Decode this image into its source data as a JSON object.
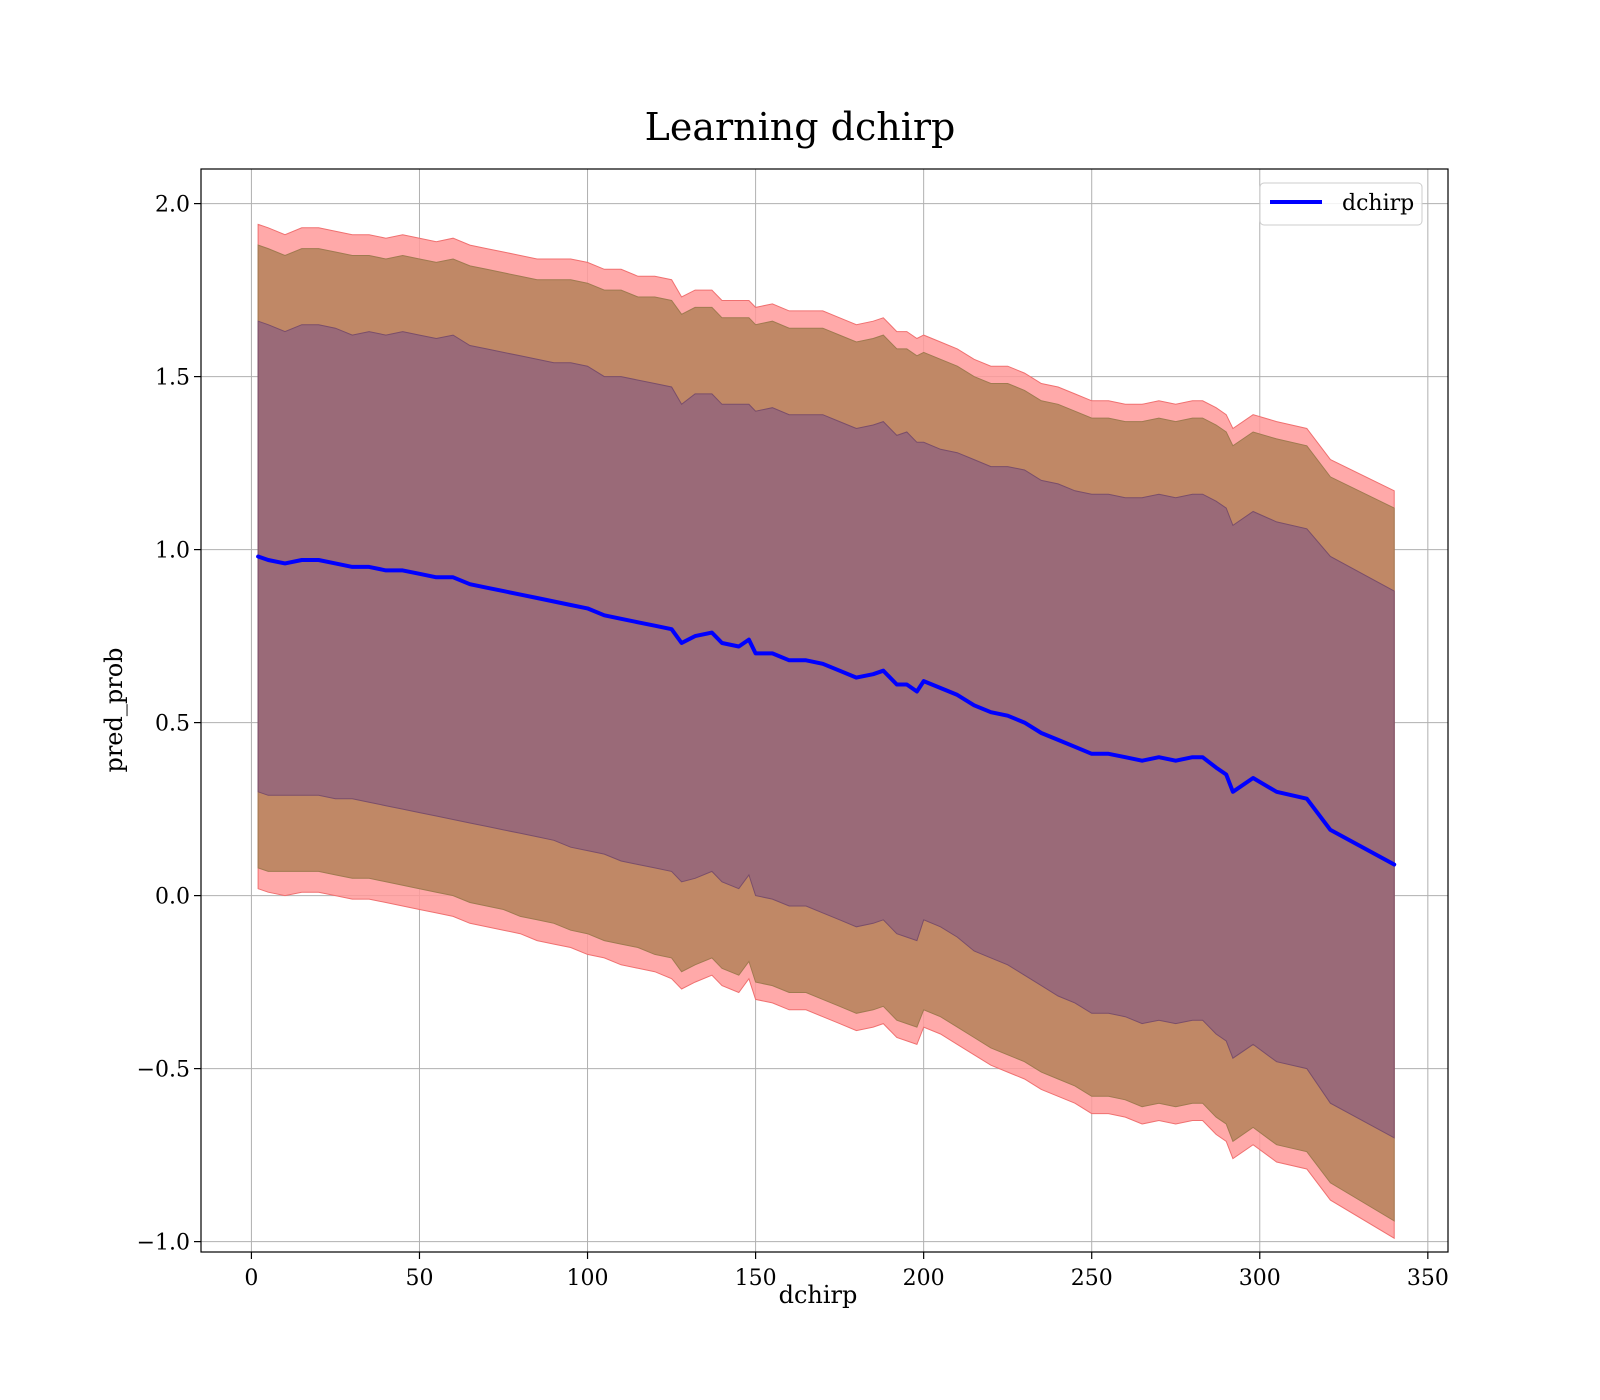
{
  "chart_data": {
    "type": "line",
    "title": "Learning dchirp",
    "xlabel": "dchirp",
    "ylabel": "pred_prob",
    "xlim": [
      -15,
      356
    ],
    "ylim": [
      -1.03,
      2.1
    ],
    "xticks": [
      0,
      50,
      100,
      150,
      200,
      250,
      300,
      350
    ],
    "yticks": [
      -1.0,
      -0.5,
      0.0,
      0.5,
      1.0,
      1.5,
      2.0
    ],
    "grid": true,
    "legend_position": "top-right",
    "colors": {
      "line": "#0000ff",
      "band_outer": "#ff9a9a",
      "band_middle": "#c08866",
      "band_inner": "#9a6a78",
      "grid": "#b0b0b0"
    },
    "series": [
      {
        "name": "dchirp",
        "x": [
          2,
          5,
          10,
          15,
          20,
          25,
          30,
          35,
          40,
          45,
          50,
          55,
          60,
          65,
          70,
          75,
          80,
          85,
          90,
          95,
          100,
          105,
          110,
          115,
          120,
          125,
          128,
          132,
          137,
          140,
          145,
          148,
          150,
          155,
          160,
          165,
          170,
          175,
          180,
          185,
          188,
          192,
          195,
          198,
          200,
          205,
          210,
          215,
          220,
          225,
          230,
          235,
          240,
          245,
          250,
          255,
          260,
          265,
          270,
          275,
          280,
          283,
          287,
          290,
          292,
          298,
          305,
          314,
          321,
          340
        ],
        "values": [
          0.98,
          0.97,
          0.96,
          0.97,
          0.97,
          0.96,
          0.95,
          0.95,
          0.94,
          0.94,
          0.93,
          0.92,
          0.92,
          0.9,
          0.89,
          0.88,
          0.87,
          0.86,
          0.85,
          0.84,
          0.83,
          0.81,
          0.8,
          0.79,
          0.78,
          0.77,
          0.73,
          0.75,
          0.76,
          0.73,
          0.72,
          0.74,
          0.7,
          0.7,
          0.68,
          0.68,
          0.67,
          0.65,
          0.63,
          0.64,
          0.65,
          0.61,
          0.61,
          0.59,
          0.62,
          0.6,
          0.58,
          0.55,
          0.53,
          0.52,
          0.5,
          0.47,
          0.45,
          0.43,
          0.41,
          0.41,
          0.4,
          0.39,
          0.4,
          0.39,
          0.4,
          0.4,
          0.37,
          0.35,
          0.3,
          0.34,
          0.3,
          0.28,
          0.19,
          0.09
        ],
        "band_inner": {
          "lower": [
            0.3,
            0.29,
            0.29,
            0.29,
            0.29,
            0.28,
            0.28,
            0.27,
            0.26,
            0.25,
            0.24,
            0.23,
            0.22,
            0.21,
            0.2,
            0.19,
            0.18,
            0.17,
            0.16,
            0.14,
            0.13,
            0.12,
            0.1,
            0.09,
            0.08,
            0.07,
            0.04,
            0.05,
            0.07,
            0.04,
            0.02,
            0.06,
            0.0,
            -0.01,
            -0.03,
            -0.03,
            -0.05,
            -0.07,
            -0.09,
            -0.08,
            -0.07,
            -0.11,
            -0.12,
            -0.13,
            -0.07,
            -0.09,
            -0.12,
            -0.16,
            -0.18,
            -0.2,
            -0.23,
            -0.26,
            -0.29,
            -0.31,
            -0.34,
            -0.34,
            -0.35,
            -0.37,
            -0.36,
            -0.37,
            -0.36,
            -0.36,
            -0.4,
            -0.42,
            -0.47,
            -0.43,
            -0.48,
            -0.5,
            -0.6,
            -0.7
          ],
          "upper": [
            1.66,
            1.65,
            1.63,
            1.65,
            1.65,
            1.64,
            1.62,
            1.63,
            1.62,
            1.63,
            1.62,
            1.61,
            1.62,
            1.59,
            1.58,
            1.57,
            1.56,
            1.55,
            1.54,
            1.54,
            1.53,
            1.5,
            1.5,
            1.49,
            1.48,
            1.47,
            1.42,
            1.45,
            1.45,
            1.42,
            1.42,
            1.42,
            1.4,
            1.41,
            1.39,
            1.39,
            1.39,
            1.37,
            1.35,
            1.36,
            1.37,
            1.33,
            1.34,
            1.31,
            1.31,
            1.29,
            1.28,
            1.26,
            1.24,
            1.24,
            1.23,
            1.2,
            1.19,
            1.17,
            1.16,
            1.16,
            1.15,
            1.15,
            1.16,
            1.15,
            1.16,
            1.16,
            1.14,
            1.12,
            1.07,
            1.11,
            1.08,
            1.06,
            0.98,
            0.88
          ]
        },
        "band_middle": {
          "lower": [
            0.08,
            0.07,
            0.07,
            0.07,
            0.07,
            0.06,
            0.05,
            0.05,
            0.04,
            0.03,
            0.02,
            0.01,
            0.0,
            -0.02,
            -0.03,
            -0.04,
            -0.06,
            -0.07,
            -0.08,
            -0.1,
            -0.11,
            -0.13,
            -0.14,
            -0.15,
            -0.17,
            -0.18,
            -0.22,
            -0.2,
            -0.18,
            -0.21,
            -0.23,
            -0.19,
            -0.25,
            -0.26,
            -0.28,
            -0.28,
            -0.3,
            -0.32,
            -0.34,
            -0.33,
            -0.32,
            -0.36,
            -0.37,
            -0.38,
            -0.33,
            -0.35,
            -0.38,
            -0.41,
            -0.44,
            -0.46,
            -0.48,
            -0.51,
            -0.53,
            -0.55,
            -0.58,
            -0.58,
            -0.59,
            -0.61,
            -0.6,
            -0.61,
            -0.6,
            -0.6,
            -0.64,
            -0.66,
            -0.71,
            -0.67,
            -0.72,
            -0.74,
            -0.83,
            -0.94
          ],
          "upper": [
            1.88,
            1.87,
            1.85,
            1.87,
            1.87,
            1.86,
            1.85,
            1.85,
            1.84,
            1.85,
            1.84,
            1.83,
            1.84,
            1.82,
            1.81,
            1.8,
            1.79,
            1.78,
            1.78,
            1.78,
            1.77,
            1.75,
            1.75,
            1.73,
            1.73,
            1.72,
            1.68,
            1.7,
            1.7,
            1.67,
            1.67,
            1.67,
            1.65,
            1.66,
            1.64,
            1.64,
            1.64,
            1.62,
            1.6,
            1.61,
            1.62,
            1.58,
            1.58,
            1.56,
            1.57,
            1.55,
            1.53,
            1.5,
            1.48,
            1.48,
            1.46,
            1.43,
            1.42,
            1.4,
            1.38,
            1.38,
            1.37,
            1.37,
            1.38,
            1.37,
            1.38,
            1.38,
            1.36,
            1.34,
            1.3,
            1.34,
            1.32,
            1.3,
            1.21,
            1.12
          ]
        },
        "band_outer": {
          "lower": [
            0.02,
            0.01,
            0.0,
            0.01,
            0.01,
            0.0,
            -0.01,
            -0.01,
            -0.02,
            -0.03,
            -0.04,
            -0.05,
            -0.06,
            -0.08,
            -0.09,
            -0.1,
            -0.11,
            -0.13,
            -0.14,
            -0.15,
            -0.17,
            -0.18,
            -0.2,
            -0.21,
            -0.22,
            -0.24,
            -0.27,
            -0.25,
            -0.23,
            -0.26,
            -0.28,
            -0.24,
            -0.3,
            -0.31,
            -0.33,
            -0.33,
            -0.35,
            -0.37,
            -0.39,
            -0.38,
            -0.37,
            -0.41,
            -0.42,
            -0.43,
            -0.38,
            -0.4,
            -0.43,
            -0.46,
            -0.49,
            -0.51,
            -0.53,
            -0.56,
            -0.58,
            -0.6,
            -0.63,
            -0.63,
            -0.64,
            -0.66,
            -0.65,
            -0.66,
            -0.65,
            -0.65,
            -0.69,
            -0.71,
            -0.76,
            -0.72,
            -0.77,
            -0.79,
            -0.88,
            -0.99
          ],
          "upper": [
            1.94,
            1.93,
            1.91,
            1.93,
            1.93,
            1.92,
            1.91,
            1.91,
            1.9,
            1.91,
            1.9,
            1.89,
            1.9,
            1.88,
            1.87,
            1.86,
            1.85,
            1.84,
            1.84,
            1.84,
            1.83,
            1.81,
            1.81,
            1.79,
            1.79,
            1.78,
            1.73,
            1.75,
            1.75,
            1.72,
            1.72,
            1.72,
            1.7,
            1.71,
            1.69,
            1.69,
            1.69,
            1.67,
            1.65,
            1.66,
            1.67,
            1.63,
            1.63,
            1.61,
            1.62,
            1.6,
            1.58,
            1.55,
            1.53,
            1.53,
            1.51,
            1.48,
            1.47,
            1.45,
            1.43,
            1.43,
            1.42,
            1.42,
            1.43,
            1.42,
            1.43,
            1.43,
            1.41,
            1.39,
            1.35,
            1.39,
            1.37,
            1.35,
            1.26,
            1.17
          ]
        }
      }
    ]
  }
}
